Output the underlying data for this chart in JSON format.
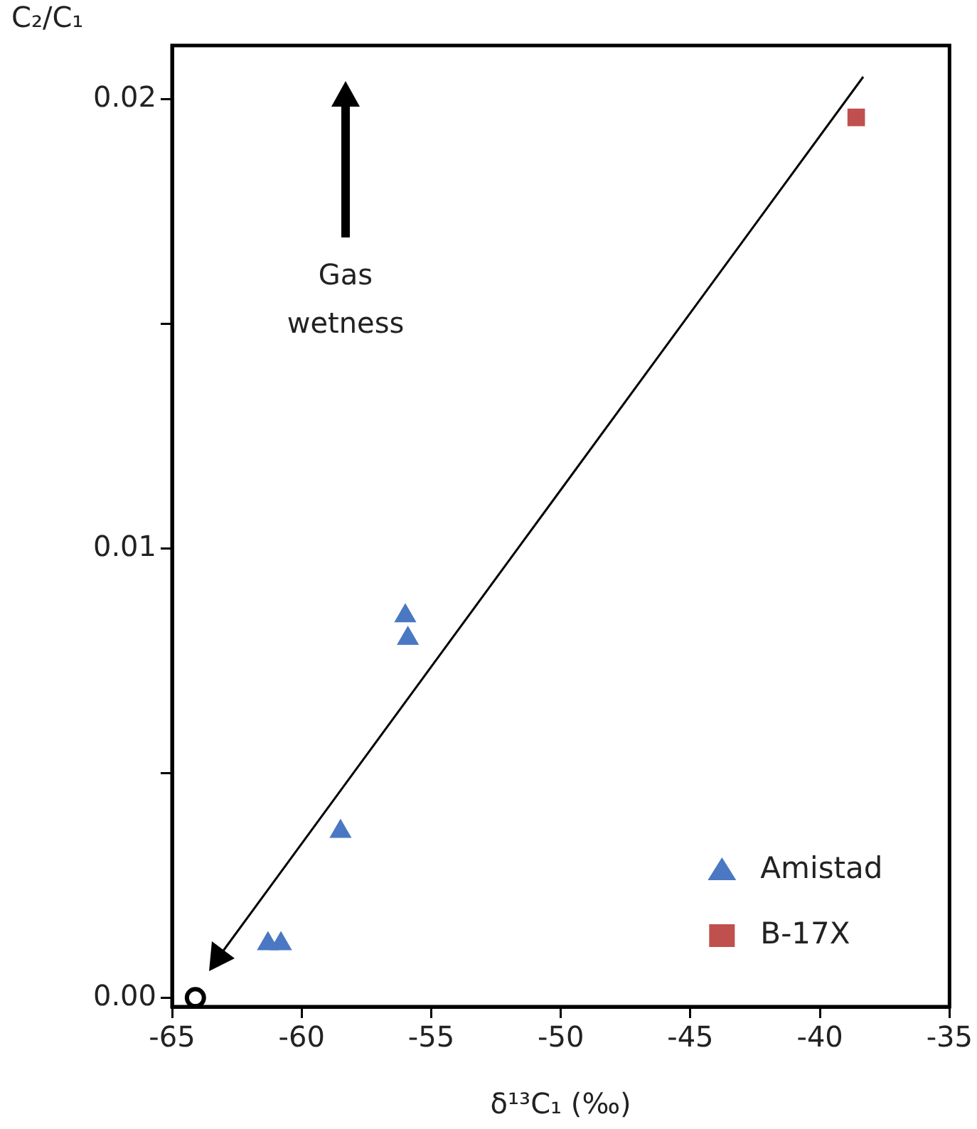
{
  "chart_data": {
    "type": "scatter",
    "xlabel": "δ¹³C₁ (‰)",
    "ylabel": "C₂/C₁",
    "xlim": [
      -65,
      -35
    ],
    "xticks": [
      -65,
      -60,
      -55,
      -50,
      -45,
      -40,
      -35
    ],
    "ylim": [
      -0.0002,
      0.0212
    ],
    "yticks": [
      {
        "value": 0,
        "label": "0.00"
      },
      {
        "value": 0.005,
        "label": null
      },
      {
        "value": 0.01,
        "label": "0.01"
      },
      {
        "value": 0.015,
        "label": null
      },
      {
        "value": 0.02,
        "label": "0.02"
      }
    ],
    "grid": false,
    "legend": "bottom right",
    "annotations": [
      "Gas wetness"
    ],
    "series": [
      {
        "name": "Amistad",
        "marker": "triangle",
        "color": "#4a78c2",
        "x": [
          -56.0,
          -55.9,
          -58.5,
          -61.3,
          -60.8
        ],
        "values": [
          0.0085,
          0.008,
          0.0037,
          0.0012,
          0.0012
        ]
      },
      {
        "name": "B-17X",
        "marker": "square",
        "color": "#c0504d",
        "x": [
          -38.6
        ],
        "values": [
          0.0196
        ]
      },
      {
        "marker": "circle",
        "color": "#000000",
        "x": [
          -64.1
        ],
        "values": [
          0
        ]
      }
    ]
  }
}
